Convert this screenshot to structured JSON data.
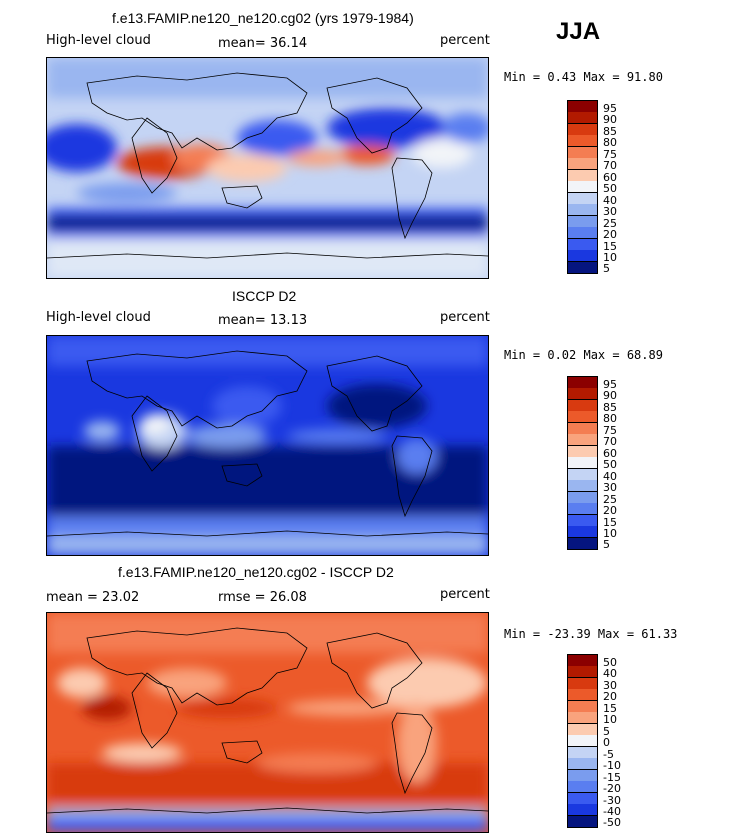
{
  "season": "JJA",
  "panels": [
    {
      "title": "f.e13.FAMIP.ne120_ne120.cg02 (yrs 1979-1984)",
      "left_label": "High-level cloud",
      "mid_label": "mean=   36.14",
      "right_label": "percent",
      "minmax": "Min =    0.43 Max =   91.80",
      "colorbar_labels": [
        "95",
        "90",
        "85",
        "80",
        "75",
        "70",
        "60",
        "50",
        "40",
        "30",
        "25",
        "20",
        "15",
        "10",
        "5"
      ],
      "colors": [
        "#8b0000",
        "#b21a00",
        "#d83a10",
        "#ec5a2a",
        "#f47d52",
        "#f9a37d",
        "#fccbb0",
        "#f2f4f8",
        "#c4d4f4",
        "#9ab6f0",
        "#7a9cee",
        "#5a7ef0",
        "#3a5af0",
        "#1a38e0",
        "#05157f"
      ]
    },
    {
      "title": "ISCCP D2",
      "left_label": "High-level cloud",
      "mid_label": "mean=   13.13",
      "right_label": "percent",
      "minmax": "Min =    0.02 Max =   68.89",
      "colorbar_labels": [
        "95",
        "90",
        "85",
        "80",
        "75",
        "70",
        "60",
        "50",
        "40",
        "30",
        "25",
        "20",
        "15",
        "10",
        "5"
      ],
      "colors": [
        "#8b0000",
        "#b21a00",
        "#d83a10",
        "#ec5a2a",
        "#f47d52",
        "#f9a37d",
        "#fccbb0",
        "#f2f4f8",
        "#c4d4f4",
        "#9ab6f0",
        "#7a9cee",
        "#5a7ef0",
        "#3a5af0",
        "#1a38e0",
        "#05157f"
      ]
    },
    {
      "title": "f.e13.FAMIP.ne120_ne120.cg02 - ISCCP D2",
      "left_label": "mean =   23.02",
      "mid_label": "rmse =   26.08",
      "right_label": "percent",
      "minmax": "Min = -23.39 Max =   61.33",
      "colorbar_labels": [
        "50",
        "40",
        "30",
        "20",
        "15",
        "10",
        "5",
        "0",
        "-5",
        "-10",
        "-15",
        "-20",
        "-30",
        "-40",
        "-50"
      ],
      "colors": [
        "#8b0000",
        "#b21a00",
        "#d83a10",
        "#ec5a2a",
        "#f47d52",
        "#f9a37d",
        "#fccbb0",
        "#f2f4f8",
        "#c4d4f4",
        "#9ab6f0",
        "#7a9cee",
        "#5a7ef0",
        "#3a5af0",
        "#1a38e0",
        "#05157f"
      ]
    }
  ],
  "chart_data": [
    {
      "type": "heatmap",
      "title": "f.e13.FAMIP.ne120_ne120.cg02 (yrs 1979-1984)",
      "variable": "High-level cloud",
      "units": "percent",
      "season": "JJA",
      "mean": 36.14,
      "min": 0.43,
      "max": 91.8,
      "levels": [
        5,
        10,
        15,
        20,
        25,
        30,
        40,
        50,
        60,
        70,
        75,
        80,
        85,
        90,
        95
      ]
    },
    {
      "type": "heatmap",
      "title": "ISCCP D2",
      "variable": "High-level cloud",
      "units": "percent",
      "season": "JJA",
      "mean": 13.13,
      "min": 0.02,
      "max": 68.89,
      "levels": [
        5,
        10,
        15,
        20,
        25,
        30,
        40,
        50,
        60,
        70,
        75,
        80,
        85,
        90,
        95
      ]
    },
    {
      "type": "heatmap",
      "title": "f.e13.FAMIP.ne120_ne120.cg02 - ISCCP D2",
      "units": "percent",
      "season": "JJA",
      "mean": 23.02,
      "rmse": 26.08,
      "min": -23.39,
      "max": 61.33,
      "levels": [
        -50,
        -40,
        -30,
        -20,
        -15,
        -10,
        -5,
        0,
        5,
        10,
        15,
        20,
        30,
        40,
        50
      ]
    }
  ]
}
